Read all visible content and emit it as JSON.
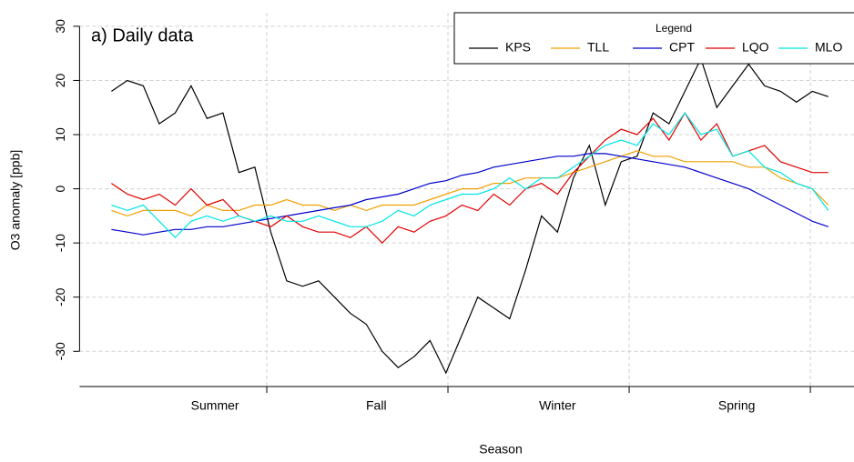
{
  "chart_data": {
    "type": "line",
    "annotation": "a) Daily data",
    "x_label": "Season",
    "y_label": "O3 anomaly [ppb]",
    "x": [
      13,
      21,
      29,
      37,
      45,
      53,
      61,
      69,
      77,
      85,
      93,
      101,
      109,
      117,
      125,
      133,
      141,
      149,
      157,
      165,
      173,
      181,
      189,
      197,
      205,
      213,
      221,
      229,
      237,
      245,
      253,
      261,
      269,
      277,
      285,
      293,
      301,
      309,
      317,
      325,
      333,
      341,
      349,
      357,
      365,
      373
    ],
    "xlim": [
      -3,
      386
    ],
    "xticks": [
      91,
      182,
      273,
      364
    ],
    "x_labels": [
      {
        "value": 65,
        "label": "Summer"
      },
      {
        "value": 146,
        "label": "Fall"
      },
      {
        "value": 237,
        "label": "Winter"
      },
      {
        "value": 327,
        "label": "Spring"
      }
    ],
    "ylim": [
      -36.5,
      32.5
    ],
    "yticks": [
      -30,
      -20,
      -10,
      0,
      10,
      20,
      30
    ],
    "grid": true,
    "legend_title": "Legend",
    "legend_position": "top-right",
    "series": [
      {
        "name": "KPS",
        "color": "#000000",
        "values": [
          18,
          20,
          19,
          12,
          14,
          19,
          13,
          14,
          3,
          4,
          -8,
          -17,
          -18,
          -17,
          -20,
          -23,
          -25,
          -30,
          -33,
          -31,
          -28,
          -34,
          -27,
          -20,
          -22,
          -24,
          -15,
          -5,
          -8,
          2,
          8,
          -3,
          5,
          6,
          14,
          12,
          18,
          24,
          15,
          19,
          23,
          19,
          18,
          16,
          18,
          17
        ]
      },
      {
        "name": "TLL",
        "color": "#f0a000",
        "values": [
          -4,
          -5,
          -4,
          -4,
          -4,
          -5,
          -3,
          -4,
          -4,
          -3,
          -3,
          -2,
          -3,
          -3,
          -4,
          -3,
          -4,
          -3,
          -3,
          -3,
          -2,
          -1,
          0,
          0,
          1,
          1,
          2,
          2,
          2,
          3,
          4,
          5,
          6,
          7,
          6,
          6,
          5,
          5,
          5,
          5,
          4,
          4,
          2,
          1,
          0,
          -3
        ]
      },
      {
        "name": "CPT",
        "color": "#0000cc",
        "values": [
          -7.5,
          -8,
          -8.5,
          -8,
          -7.5,
          -7.5,
          -7,
          -7,
          -6.5,
          -6,
          -5.5,
          -5,
          -4.5,
          -4,
          -3.5,
          -3,
          -2,
          -1.5,
          -1,
          0,
          1,
          1.5,
          2.5,
          3,
          4,
          4.5,
          5,
          5.5,
          6,
          6,
          6.5,
          6.5,
          6,
          5.5,
          5,
          4.5,
          4,
          3,
          2,
          1,
          0,
          -1.5,
          -3,
          -4.5,
          -6,
          -7
        ]
      },
      {
        "name": "LQO",
        "color": "#e00000",
        "values": [
          1,
          -1,
          -2,
          -1,
          -3,
          0,
          -3,
          -2,
          -5,
          -6,
          -7,
          -5,
          -7,
          -8,
          -8,
          -9,
          -7,
          -10,
          -7,
          -8,
          -6,
          -5,
          -3,
          -4,
          -1,
          -3,
          0,
          1,
          -1,
          3,
          6,
          9,
          11,
          10,
          13,
          9,
          14,
          9,
          12,
          6,
          7,
          8,
          5,
          4,
          3,
          3
        ]
      },
      {
        "name": "MLO",
        "color": "#00e5e5",
        "values": [
          -3,
          -4,
          -3,
          -6,
          -9,
          -6,
          -5,
          -6,
          -5,
          -6,
          -5,
          -6,
          -6,
          -5,
          -6,
          -7,
          -7,
          -6,
          -4,
          -5,
          -3,
          -2,
          -1,
          -1,
          0,
          2,
          0,
          2,
          2,
          4,
          6,
          8,
          9,
          8,
          12,
          10,
          14,
          10,
          11,
          6,
          7,
          4,
          3,
          1,
          0,
          -4
        ]
      }
    ]
  }
}
